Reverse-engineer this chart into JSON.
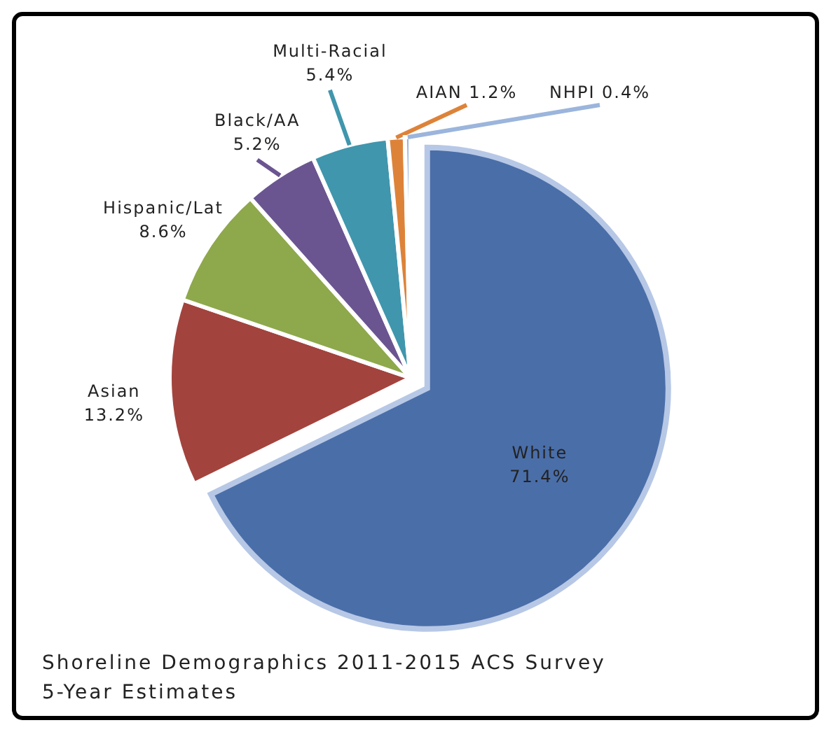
{
  "chart_data": {
    "type": "pie",
    "title": "Shoreline Demographics 2011-2015 ACS Survey 5-Year Estimates",
    "categories": [
      "White",
      "Asian",
      "Hispanic/Lat",
      "Black/AA",
      "Multi-Racial",
      "AIAN",
      "NHPI"
    ],
    "values": [
      71.4,
      13.2,
      8.6,
      5.2,
      5.4,
      1.2,
      0.4
    ],
    "value_labels": [
      "71.4%",
      "13.2%",
      "8.6%",
      "5.2%",
      "5.4%",
      "1.2%",
      "0.4%"
    ],
    "colors": [
      "#4a6ea8",
      "#a3433d",
      "#8ea84c",
      "#6a5591",
      "#4096ad",
      "#dd8339",
      "#9bb5dc"
    ]
  }
}
